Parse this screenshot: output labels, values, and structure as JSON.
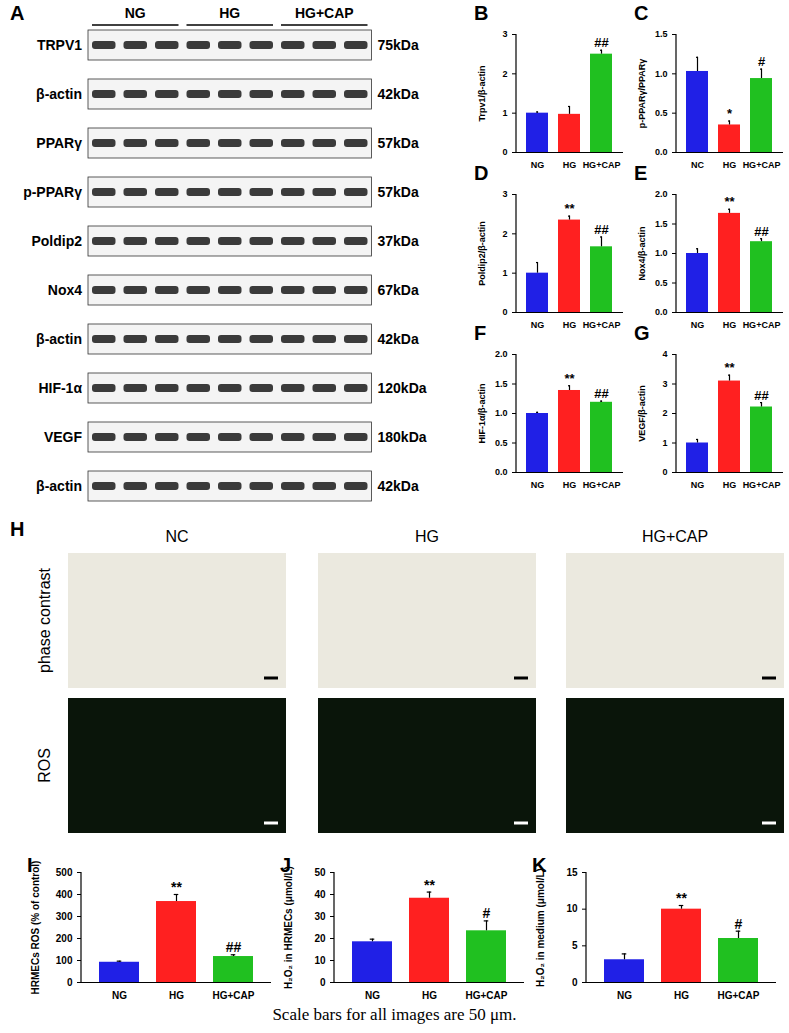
{
  "chart_data": [
    {
      "type": "bar",
      "title": "B",
      "categories": [
        "NG",
        "HG",
        "HG+CAP"
      ],
      "values": [
        1.0,
        0.97,
        2.5
      ],
      "errors": [
        0.03,
        0.2,
        0.1
      ],
      "annotations": [
        null,
        null,
        "##"
      ],
      "colors": [
        "#2020e6",
        "#ff2020",
        "#20c020"
      ],
      "ylabel": "Trpv1/β-actin",
      "ylim": [
        0,
        3
      ],
      "yticks": [
        0,
        1,
        2,
        3
      ]
    },
    {
      "type": "bar",
      "title": "C",
      "categories": [
        "NC",
        "HG",
        "HG+CAP"
      ],
      "values": [
        1.03,
        0.35,
        0.94
      ],
      "errors": [
        0.18,
        0.05,
        0.12
      ],
      "annotations": [
        null,
        "*",
        "#"
      ],
      "colors": [
        "#2020e6",
        "#ff2020",
        "#20c020"
      ],
      "ylabel": "p-PPARγ/PPARγ",
      "ylim": [
        0,
        1.5
      ],
      "yticks": [
        {
          "value": 0,
          "label": "0.0"
        },
        0.5,
        {
          "value": 1,
          "label": "1.0"
        },
        1.5
      ]
    },
    {
      "type": "bar",
      "title": "D",
      "categories": [
        "NG",
        "HG",
        "HG+CAP"
      ],
      "values": [
        1.0,
        2.35,
        1.67
      ],
      "errors": [
        0.27,
        0.1,
        0.25
      ],
      "annotations": [
        null,
        "**",
        "##"
      ],
      "colors": [
        "#2020e6",
        "#ff2020",
        "#20c020"
      ],
      "ylabel": "Poldip2/β-actin",
      "ylim": [
        0,
        3
      ],
      "yticks": [
        0,
        1,
        2,
        3
      ]
    },
    {
      "type": "bar",
      "title": "E",
      "categories": [
        "NG",
        "HG",
        "HG+CAP"
      ],
      "values": [
        1.0,
        1.68,
        1.2
      ],
      "errors": [
        0.08,
        0.07,
        0.05
      ],
      "annotations": [
        null,
        "**",
        "##"
      ],
      "colors": [
        "#2020e6",
        "#ff2020",
        "#20c020"
      ],
      "ylabel": "Nox4/β-actin",
      "ylim": [
        0,
        2
      ],
      "yticks": [
        {
          "value": 0,
          "label": "0.0"
        },
        0.5,
        {
          "value": 1,
          "label": "1.0"
        },
        1.5,
        {
          "value": 2,
          "label": "2.0"
        }
      ]
    },
    {
      "type": "bar",
      "title": "F",
      "categories": [
        "NG",
        "HG",
        "HG+CAP"
      ],
      "values": [
        1.0,
        1.39,
        1.19
      ],
      "errors": [
        0.02,
        0.08,
        0.02
      ],
      "annotations": [
        null,
        "**",
        "##"
      ],
      "colors": [
        "#2020e6",
        "#ff2020",
        "#20c020"
      ],
      "ylabel": "HIF-1α/β-actin",
      "ylim": [
        0,
        2
      ],
      "yticks": [
        {
          "value": 0,
          "label": "0.0"
        },
        0.5,
        {
          "value": 1,
          "label": "1.0"
        },
        1.5,
        {
          "value": 2,
          "label": "2.0"
        }
      ]
    },
    {
      "type": "bar",
      "title": "G",
      "categories": [
        "NG",
        "HG",
        "HG+CAP"
      ],
      "values": [
        1.0,
        3.1,
        2.22
      ],
      "errors": [
        0.12,
        0.2,
        0.15
      ],
      "annotations": [
        null,
        "**",
        "##"
      ],
      "colors": [
        "#2020e6",
        "#ff2020",
        "#20c020"
      ],
      "ylabel": "VEGF/β-actin",
      "ylim": [
        0,
        4
      ],
      "yticks": [
        0,
        1,
        2,
        3,
        4
      ]
    },
    {
      "type": "bar",
      "title": "I",
      "categories": [
        "NG",
        "HG",
        "HG+CAP"
      ],
      "values": [
        92,
        368,
        118
      ],
      "errors": [
        5,
        32,
        8
      ],
      "annotations": [
        null,
        "**",
        "##"
      ],
      "colors": [
        "#2020e6",
        "#ff2020",
        "#20c020"
      ],
      "ylabel": "HRMECs ROS (% of control)",
      "ylim": [
        0,
        500
      ],
      "yticks": [
        0,
        100,
        200,
        300,
        400,
        500
      ]
    },
    {
      "type": "bar",
      "title": "J",
      "categories": [
        "NG",
        "HG",
        "HG+CAP"
      ],
      "values": [
        18.5,
        38.3,
        23.5
      ],
      "errors": [
        1.2,
        2.8,
        4.5
      ],
      "annotations": [
        null,
        "**",
        "#"
      ],
      "colors": [
        "#2020e6",
        "#ff2020",
        "#20c020"
      ],
      "ylabel": "H₂O₂ in HRMECs (μmol/L)",
      "ylim": [
        0,
        50
      ],
      "yticks": [
        0,
        10,
        20,
        30,
        40,
        50
      ]
    },
    {
      "type": "bar",
      "title": "K",
      "categories": [
        "NG",
        "HG",
        "HG+CAP"
      ],
      "values": [
        3.1,
        10.0,
        6.0
      ],
      "errors": [
        0.8,
        0.5,
        1.0
      ],
      "annotations": [
        null,
        "**",
        "#"
      ],
      "colors": [
        "#2020e6",
        "#ff2020",
        "#20c020"
      ],
      "ylabel": "H₂O₂ in medium (μmol/L)",
      "ylim": [
        0,
        15
      ],
      "yticks": [
        0,
        5,
        10,
        15
      ]
    }
  ],
  "blot": {
    "title": "A",
    "groups": [
      "NG",
      "HG",
      "HG+CAP"
    ],
    "lanes_per_group": 3,
    "rows": [
      {
        "label": "TRPV1",
        "size": "75kDa"
      },
      {
        "label": "β-actin",
        "size": "42kDa"
      },
      {
        "label": "PPARγ",
        "size": "57kDa"
      },
      {
        "label": "p-PPARγ",
        "size": "57kDa"
      },
      {
        "label": "Poldip2",
        "size": "37kDa"
      },
      {
        "label": "Nox4",
        "size": "67kDa"
      },
      {
        "label": "β-actin",
        "size": "42kDa"
      },
      {
        "label": "HIF-1α",
        "size": "120kDa"
      },
      {
        "label": "VEGF",
        "size": "180kDa"
      },
      {
        "label": "β-actin",
        "size": "42kDa"
      }
    ]
  },
  "micrographs": {
    "title": "H",
    "columns": [
      "NC",
      "HG",
      "HG+CAP"
    ],
    "rows": [
      "phase contrast",
      "ROS"
    ]
  },
  "caption": "Scale bars for all images are 50 μm."
}
